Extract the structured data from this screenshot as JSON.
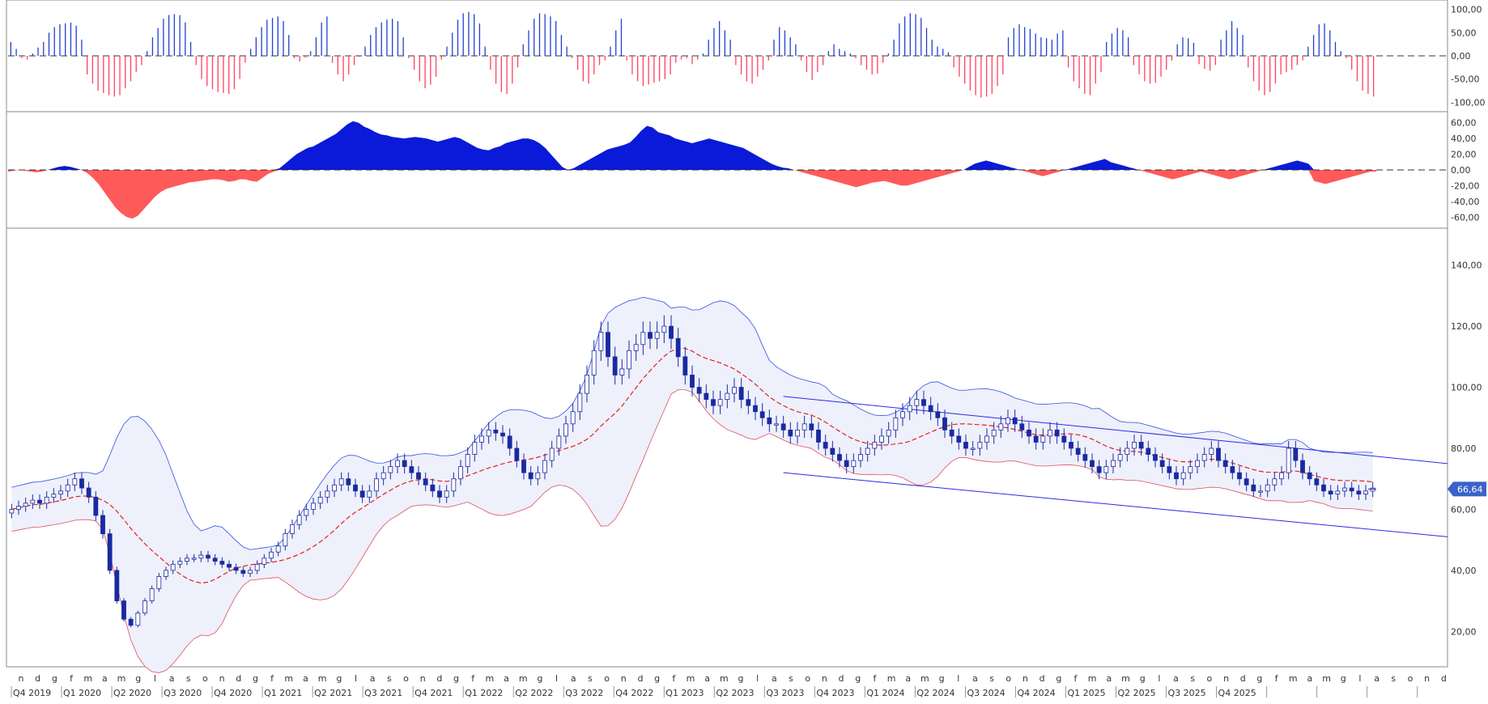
{
  "colors": {
    "up": "#2040d0",
    "down": "#ff4060",
    "area_pos": "#0a1ad8",
    "area_neg": "#ff5a5a",
    "candle": "#1a2aa0",
    "upper_band": "#3050e0",
    "lower_band": "#e05060",
    "mid_band": "#e01010",
    "channel": "#2a2ae8",
    "price_badge": "#3a62c8"
  },
  "chart_data": [
    {
      "type": "bar",
      "panel": "oscillator",
      "y_ticks": [
        "100,00",
        "50,00",
        "0,00",
        "-50,00",
        "-100,00"
      ],
      "ylim": [
        -110,
        110
      ],
      "reference_line": 0,
      "values": [
        30,
        15,
        -5,
        -8,
        5,
        18,
        30,
        50,
        62,
        68,
        70,
        72,
        65,
        35,
        -40,
        -60,
        -75,
        -80,
        -85,
        -88,
        -85,
        -70,
        -55,
        -35,
        -20,
        10,
        40,
        60,
        80,
        88,
        90,
        88,
        72,
        30,
        -20,
        -50,
        -65,
        -72,
        -78,
        -80,
        -82,
        -72,
        -50,
        -15,
        15,
        40,
        62,
        78,
        82,
        85,
        75,
        45,
        -5,
        -12,
        -4,
        10,
        40,
        72,
        85,
        -15,
        -40,
        -55,
        -40,
        -20,
        -2,
        20,
        45,
        62,
        72,
        78,
        80,
        75,
        40,
        -5,
        -30,
        -55,
        -70,
        -62,
        -45,
        -8,
        20,
        50,
        78,
        92,
        95,
        90,
        70,
        20,
        -30,
        -60,
        -78,
        -82,
        -60,
        -25,
        25,
        55,
        80,
        92,
        90,
        85,
        75,
        45,
        20,
        -5,
        -30,
        -55,
        -60,
        -40,
        -20,
        -10,
        20,
        55,
        80,
        -10,
        -40,
        -55,
        -65,
        -62,
        -58,
        -55,
        -50,
        -40,
        -15,
        -8,
        -5,
        -18,
        -8,
        5,
        35,
        60,
        75,
        55,
        35,
        -20,
        -40,
        -55,
        -60,
        -45,
        -30,
        -10,
        35,
        62,
        55,
        40,
        25,
        -10,
        -35,
        -52,
        -35,
        -20,
        10,
        25,
        15,
        10,
        5,
        -5,
        -20,
        -30,
        -40,
        -38,
        -15,
        5,
        35,
        70,
        85,
        92,
        90,
        82,
        60,
        35,
        20,
        15,
        8,
        -25,
        -45,
        -60,
        -75,
        -85,
        -90,
        -88,
        -82,
        -65,
        -40,
        40,
        60,
        68,
        62,
        58,
        48,
        40,
        38,
        35,
        48,
        55,
        -25,
        -55,
        -70,
        -82,
        -85,
        -60,
        -35,
        30,
        48,
        60,
        55,
        40,
        -20,
        -40,
        -55,
        -60,
        -58,
        -45,
        -30,
        -10,
        25,
        40,
        38,
        28,
        -18,
        -28,
        -32,
        -20,
        35,
        55,
        75,
        60,
        45,
        -25,
        -55,
        -75,
        -85,
        -78,
        -60,
        -40,
        -35,
        -30,
        -20,
        -10,
        20,
        45,
        68,
        70,
        55,
        30,
        10,
        -5,
        -30,
        -55,
        -75,
        -82,
        -88
      ]
    },
    {
      "type": "area",
      "panel": "momentum",
      "y_ticks": [
        "60,00",
        "40,00",
        "20,00",
        "0,00",
        "-20,00",
        "-40,00",
        "-60,00"
      ],
      "ylim": [
        -70,
        70
      ],
      "reference_line": 0,
      "values": [
        -2,
        -1,
        0,
        -1,
        -2,
        -3,
        -2,
        0,
        2,
        4,
        5,
        4,
        2,
        0,
        -4,
        -10,
        -18,
        -28,
        -38,
        -48,
        -55,
        -60,
        -62,
        -58,
        -50,
        -42,
        -34,
        -28,
        -24,
        -22,
        -20,
        -18,
        -16,
        -15,
        -14,
        -13,
        -12,
        -12,
        -13,
        -15,
        -14,
        -12,
        -12,
        -14,
        -15,
        -10,
        -5,
        -2,
        2,
        8,
        14,
        20,
        24,
        28,
        30,
        34,
        38,
        42,
        46,
        52,
        58,
        62,
        60,
        55,
        52,
        48,
        45,
        44,
        42,
        41,
        40,
        41,
        42,
        41,
        40,
        38,
        36,
        38,
        40,
        42,
        40,
        36,
        32,
        28,
        26,
        25,
        28,
        30,
        34,
        36,
        38,
        40,
        40,
        38,
        34,
        28,
        20,
        12,
        4,
        0,
        2,
        6,
        10,
        14,
        18,
        22,
        26,
        28,
        30,
        32,
        35,
        42,
        50,
        56,
        54,
        48,
        46,
        44,
        40,
        38,
        36,
        34,
        36,
        38,
        40,
        38,
        36,
        34,
        32,
        30,
        28,
        24,
        20,
        16,
        12,
        8,
        5,
        3,
        2,
        0,
        -2,
        -4,
        -6,
        -8,
        -10,
        -12,
        -14,
        -16,
        -18,
        -20,
        -22,
        -20,
        -18,
        -16,
        -15,
        -14,
        -16,
        -18,
        -20,
        -20,
        -18,
        -16,
        -14,
        -12,
        -10,
        -8,
        -6,
        -4,
        -2,
        0,
        4,
        8,
        10,
        12,
        10,
        8,
        6,
        4,
        2,
        0,
        -2,
        -4,
        -6,
        -8,
        -6,
        -4,
        -2,
        0,
        2,
        4,
        6,
        8,
        10,
        12,
        14,
        10,
        8,
        6,
        4,
        2,
        0,
        -2,
        -4,
        -6,
        -8,
        -10,
        -12,
        -10,
        -8,
        -6,
        -4,
        -2,
        -4,
        -6,
        -8,
        -10,
        -12,
        -10,
        -8,
        -6,
        -4,
        -2,
        0,
        2,
        4,
        6,
        8,
        10,
        12,
        10,
        8,
        -14,
        -16,
        -18,
        -16,
        -14,
        -12,
        -10,
        -8,
        -6,
        -4,
        -2,
        -2
      ]
    },
    {
      "type": "candlestick",
      "panel": "price",
      "y_ticks": [
        "140,00",
        "120,00",
        "100,00",
        "80,00",
        "60,00",
        "40,00",
        "20,00"
      ],
      "ylim": [
        10,
        150
      ],
      "last_price_label": "66,64",
      "x_month_labels": [
        "n",
        "d",
        "g",
        "f",
        "m",
        "a",
        "m",
        "g",
        "l",
        "a",
        "s",
        "o",
        "n",
        "d",
        "g",
        "f",
        "m",
        "a",
        "m",
        "g",
        "l",
        "a",
        "s",
        "o",
        "n",
        "d",
        "g",
        "f",
        "m",
        "a",
        "m",
        "g",
        "l",
        "a",
        "s",
        "o",
        "n",
        "d",
        "g",
        "f",
        "m",
        "a",
        "m",
        "g",
        "l",
        "a",
        "s",
        "o",
        "n",
        "d",
        "g",
        "f",
        "m",
        "a",
        "m",
        "g",
        "l",
        "a",
        "s",
        "o",
        "n",
        "d",
        "g",
        "f",
        "m",
        "a",
        "m",
        "g",
        "l",
        "a",
        "s",
        "o",
        "n",
        "d",
        "g",
        "f",
        "m",
        "a",
        "m",
        "g",
        "l",
        "a",
        "s",
        "o",
        "n",
        "d"
      ],
      "x_quarter_labels": [
        "Q4 2019",
        "Q1 2020",
        "Q2 2020",
        "Q3 2020",
        "Q4 2020",
        "Q1 2021",
        "Q2 2021",
        "Q3 2021",
        "Q4 2021",
        "Q1 2022",
        "Q2 2022",
        "Q3 2022",
        "Q4 2022",
        "Q1 2023",
        "Q2 2023",
        "Q3 2023",
        "Q4 2023",
        "Q1 2024",
        "Q2 2024",
        "Q3 2024",
        "Q4 2024",
        "Q1 2025",
        "Q2 2025",
        "Q3 2025",
        "Q4 2025"
      ],
      "close": [
        60,
        61,
        62,
        63,
        62,
        64,
        65,
        66,
        68,
        70,
        67,
        64,
        58,
        52,
        40,
        30,
        24,
        22,
        26,
        30,
        34,
        38,
        40,
        42,
        43,
        44,
        44,
        45,
        44,
        43,
        42,
        41,
        40,
        39,
        40,
        42,
        44,
        46,
        48,
        52,
        55,
        58,
        60,
        62,
        64,
        66,
        68,
        70,
        68,
        66,
        64,
        66,
        70,
        72,
        74,
        76,
        74,
        72,
        70,
        68,
        66,
        64,
        66,
        70,
        74,
        78,
        82,
        84,
        86,
        85,
        84,
        80,
        76,
        72,
        70,
        72,
        76,
        80,
        84,
        88,
        92,
        98,
        104,
        112,
        118,
        110,
        104,
        106,
        112,
        114,
        118,
        116,
        118,
        120,
        116,
        110,
        104,
        100,
        98,
        96,
        94,
        96,
        98,
        100,
        96,
        94,
        92,
        90,
        88,
        88,
        86,
        84,
        86,
        88,
        86,
        82,
        80,
        78,
        76,
        74,
        76,
        78,
        80,
        82,
        84,
        86,
        90,
        92,
        94,
        96,
        94,
        92,
        90,
        86,
        84,
        82,
        80,
        80,
        82,
        84,
        86,
        88,
        90,
        88,
        86,
        84,
        82,
        84,
        86,
        84,
        82,
        80,
        78,
        76,
        74,
        72,
        74,
        76,
        78,
        80,
        82,
        80,
        78,
        76,
        74,
        72,
        70,
        72,
        74,
        76,
        78,
        80,
        76,
        74,
        72,
        70,
        68,
        66,
        66,
        68,
        70,
        72,
        80,
        76,
        72,
        70,
        68,
        66,
        65,
        66,
        67,
        66,
        65,
        66,
        67
      ]
    }
  ]
}
